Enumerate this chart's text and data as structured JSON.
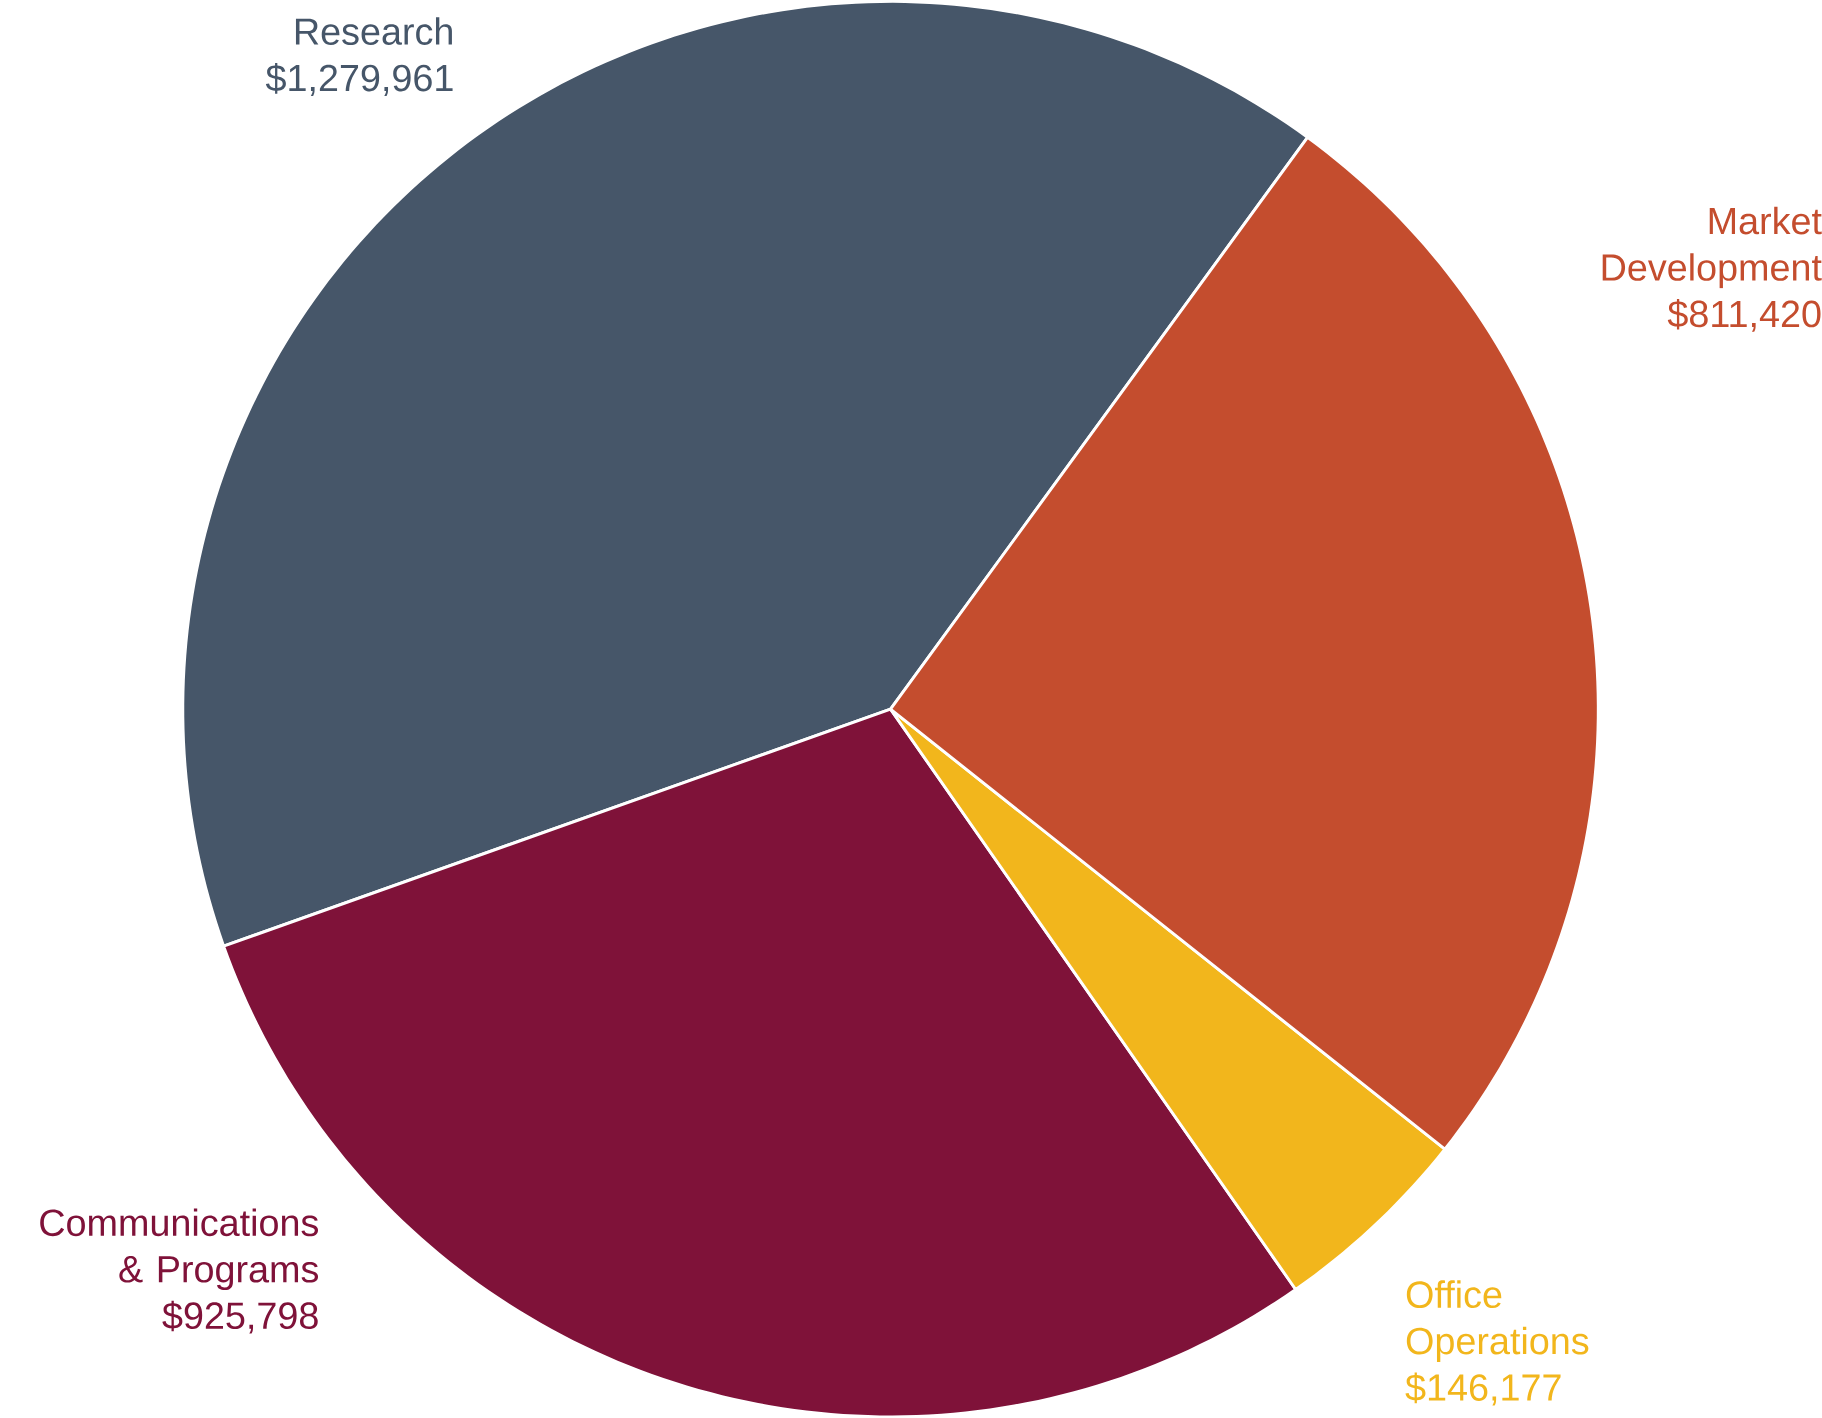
{
  "chart_data": {
    "type": "pie",
    "categories": [
      "Research",
      "Communications & Programs",
      "Office Operations",
      "Market Development"
    ],
    "values": [
      1279961,
      925798,
      146177,
      811420
    ],
    "value_labels": [
      "$1,279,961",
      "$925,798",
      "$146,177",
      "$811,420"
    ],
    "colors": [
      "#465669",
      "#7f1239",
      "#f2b61c",
      "#c44d2e"
    ]
  }
}
